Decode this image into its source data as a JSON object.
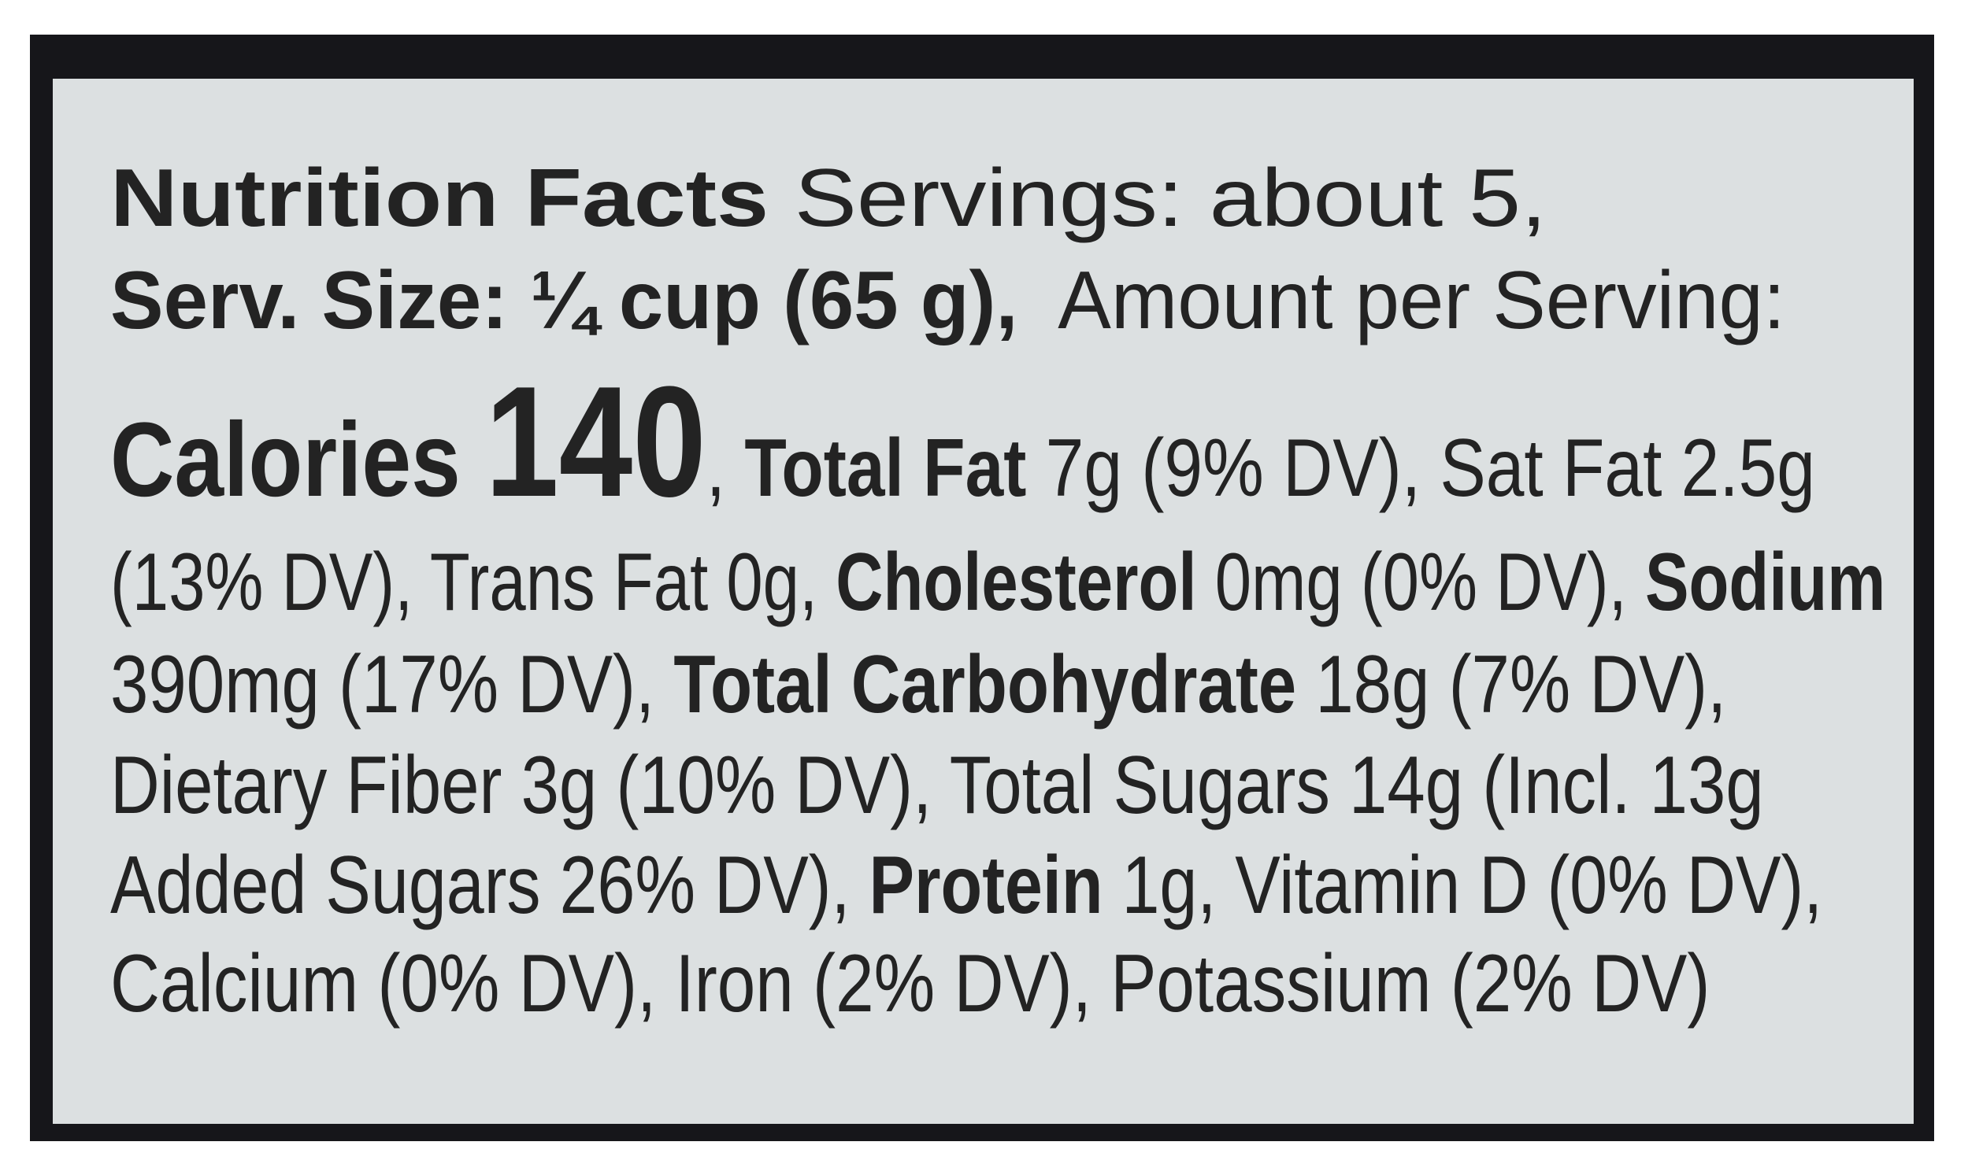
{
  "label": {
    "line1": {
      "title": "Nutrition Facts",
      "servings": " Servings: about 5,"
    },
    "line2": {
      "serving_size": "Serv. Size: ¼ cup (65 g),",
      "amount_per_serving": "  Amount per Serving:"
    },
    "line3": {
      "calories_label": "Calories ",
      "calories_value": "140",
      "sep": ", ",
      "total_fat_label": "Total Fat",
      "total_fat_value": " 7g (9% DV), Sat Fat 2.5g"
    },
    "line4": {
      "text1": "(13% DV), Trans Fat 0g, ",
      "cholesterol_label": "Cholesterol",
      "text2": " 0mg (0% DV), ",
      "sodium_label": "Sodium"
    },
    "line5": {
      "text1": "390mg (17% DV), ",
      "carb_label": "Total Carbohydrate",
      "text2": " 18g (7% DV),"
    },
    "line6": {
      "text": "Dietary Fiber 3g (10% DV), Total Sugars 14g (Incl. 13g"
    },
    "line7": {
      "text1": "Added Sugars 26% DV), ",
      "protein_label": "Protein",
      "text2": " 1g, Vitamin D (0% DV),"
    },
    "line8": {
      "text": "Calcium (0% DV), Iron (2% DV), Potassium (2% DV)"
    }
  },
  "colors": {
    "label_bg": "#dce0e1",
    "frame": "#16161a",
    "text": "#232323"
  }
}
